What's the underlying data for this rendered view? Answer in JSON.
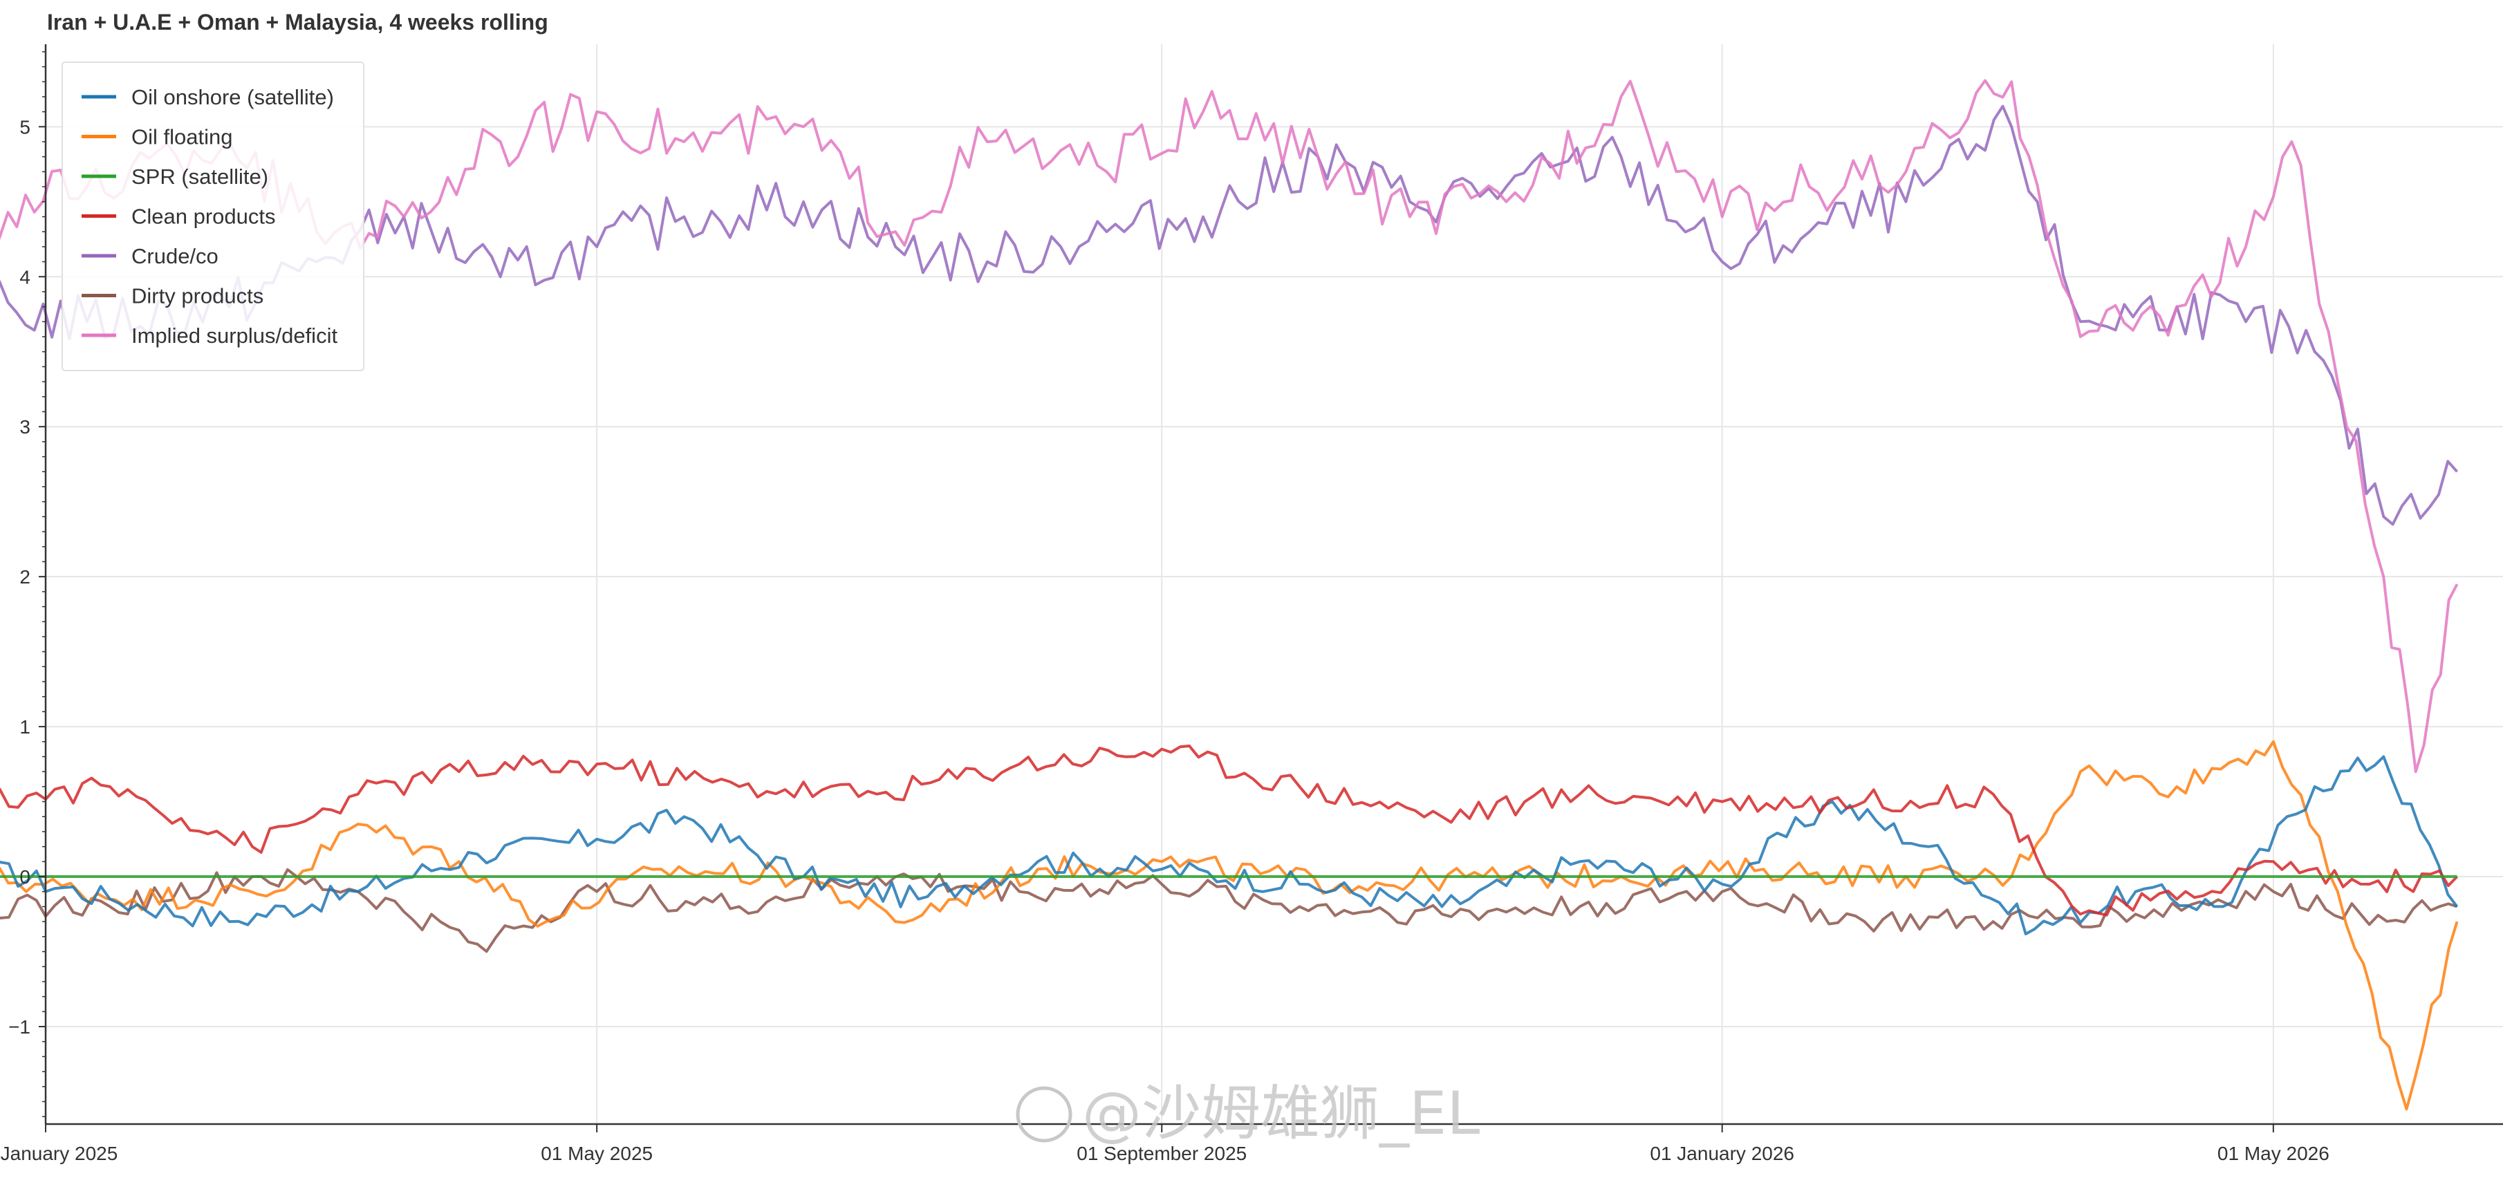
{
  "chart_data": {
    "type": "line",
    "title": "Iran + U.A.E + Oman + Malaysia, 4 weeks rolling",
    "xlabel": "",
    "ylabel": "",
    "x_range": [
      "2025-01-01",
      "2026-06-20"
    ],
    "ylim": [
      -1.65,
      5.55
    ],
    "y_ticks": [
      -1,
      0,
      1,
      2,
      3,
      4,
      5
    ],
    "y_tick_labels": [
      "−1",
      "0",
      "1",
      "2",
      "3",
      "4",
      "5"
    ],
    "x_ticks": [
      "2025-01-01",
      "2025-05-01",
      "2025-09-01",
      "2026-01-01",
      "2026-05-01"
    ],
    "x_tick_labels": [
      "01 January 2025",
      "01 May 2025",
      "01 September 2025",
      "01 January 2026",
      "01 May 2026"
    ],
    "grid": true,
    "legend_position": "top-left",
    "series": [
      {
        "name": "Oil onshore (satellite)",
        "color": "#1f77b4",
        "x": [
          "2024-12-20",
          "2025-01-15",
          "2025-02-10",
          "2025-03-10",
          "2025-04-05",
          "2025-05-01",
          "2025-05-20",
          "2025-06-15",
          "2025-07-10",
          "2025-08-05",
          "2025-09-01",
          "2025-10-01",
          "2025-11-01",
          "2025-12-01",
          "2026-01-01",
          "2026-01-25",
          "2026-02-15",
          "2026-03-10",
          "2026-04-01",
          "2026-04-20",
          "2026-05-10",
          "2026-05-25",
          "2026-06-10"
        ],
        "values": [
          0.05,
          -0.15,
          -0.3,
          -0.1,
          0.15,
          0.25,
          0.4,
          0.0,
          -0.15,
          0.1,
          0.05,
          -0.05,
          -0.2,
          0.1,
          -0.05,
          0.5,
          0.2,
          -0.35,
          -0.1,
          -0.2,
          0.6,
          0.8,
          -0.2
        ]
      },
      {
        "name": "Oil floating",
        "color": "#ff7f0e",
        "x": [
          "2024-12-20",
          "2025-01-20",
          "2025-02-20",
          "2025-03-10",
          "2025-04-01",
          "2025-04-20",
          "2025-05-15",
          "2025-06-15",
          "2025-07-05",
          "2025-08-05",
          "2025-09-01",
          "2025-10-10",
          "2025-11-10",
          "2025-12-10",
          "2026-01-10",
          "2026-02-10",
          "2026-03-05",
          "2026-03-20",
          "2026-04-10",
          "2026-05-01",
          "2026-05-15",
          "2026-05-30",
          "2026-06-10"
        ],
        "values": [
          0.0,
          -0.15,
          -0.1,
          0.35,
          0.1,
          -0.3,
          0.05,
          0.0,
          -0.3,
          0.05,
          0.1,
          -0.05,
          0.0,
          0.0,
          0.05,
          0.0,
          0.0,
          0.7,
          0.6,
          0.9,
          -0.1,
          -1.55,
          -0.3
        ]
      },
      {
        "name": "SPR (satellite)",
        "color": "#2ca02c",
        "x": [
          "2024-12-20",
          "2026-06-10"
        ],
        "values": [
          0.0,
          0.0
        ]
      },
      {
        "name": "Clean products",
        "color": "#d62728",
        "x": [
          "2024-12-20",
          "2025-01-15",
          "2025-02-15",
          "2025-03-10",
          "2025-04-01",
          "2025-05-01",
          "2025-06-01",
          "2025-07-01",
          "2025-08-01",
          "2025-09-01",
          "2025-10-01",
          "2025-11-01",
          "2025-12-01",
          "2026-01-01",
          "2026-02-01",
          "2026-03-01",
          "2026-03-20",
          "2026-04-10",
          "2026-05-01",
          "2026-05-20",
          "2026-06-10"
        ],
        "values": [
          0.5,
          0.6,
          0.2,
          0.55,
          0.7,
          0.75,
          0.6,
          0.55,
          0.75,
          0.85,
          0.6,
          0.4,
          0.55,
          0.5,
          0.5,
          0.55,
          -0.25,
          -0.15,
          0.1,
          -0.05,
          0.0
        ]
      },
      {
        "name": "Crude/co",
        "color": "#9467bd",
        "x": [
          "2024-12-20",
          "2025-01-10",
          "2025-02-10",
          "2025-03-01",
          "2025-03-20",
          "2025-04-10",
          "2025-05-01",
          "2025-05-20",
          "2025-06-15",
          "2025-07-05",
          "2025-07-25",
          "2025-08-20",
          "2025-09-10",
          "2025-10-05",
          "2025-10-25",
          "2025-11-15",
          "2025-12-10",
          "2026-01-01",
          "2026-01-20",
          "2026-02-10",
          "2026-03-05",
          "2026-03-20",
          "2026-04-10",
          "2026-04-25",
          "2026-05-10",
          "2026-05-25",
          "2026-06-10"
        ],
        "values": [
          3.8,
          3.7,
          3.8,
          4.1,
          4.4,
          4.0,
          4.2,
          4.4,
          4.5,
          4.2,
          4.1,
          4.3,
          4.4,
          4.8,
          4.5,
          4.6,
          4.8,
          4.1,
          4.3,
          4.5,
          5.0,
          3.7,
          3.8,
          3.7,
          3.5,
          2.4,
          2.7
        ]
      },
      {
        "name": "Dirty products",
        "color": "#8c564b",
        "x": [
          "2024-12-20",
          "2025-01-15",
          "2025-02-15",
          "2025-03-10",
          "2025-04-05",
          "2025-05-01",
          "2025-06-01",
          "2025-07-01",
          "2025-08-01",
          "2025-09-01",
          "2025-10-01",
          "2025-11-01",
          "2025-12-01",
          "2026-01-01",
          "2026-02-01",
          "2026-03-01",
          "2026-04-01",
          "2026-05-01",
          "2026-05-20",
          "2026-06-10"
        ],
        "values": [
          -0.2,
          -0.2,
          0.0,
          -0.1,
          -0.45,
          -0.1,
          -0.2,
          0.0,
          -0.1,
          -0.05,
          -0.2,
          -0.25,
          -0.2,
          -0.1,
          -0.3,
          -0.3,
          -0.25,
          -0.1,
          -0.25,
          -0.2
        ]
      },
      {
        "name": "Implied surplus/deficit",
        "color": "#e377c2",
        "x": [
          "2024-12-20",
          "2025-01-10",
          "2025-02-10",
          "2025-03-01",
          "2025-03-20",
          "2025-04-10",
          "2025-05-01",
          "2025-05-20",
          "2025-06-15",
          "2025-07-05",
          "2025-07-25",
          "2025-08-20",
          "2025-09-10",
          "2025-10-05",
          "2025-10-25",
          "2025-11-15",
          "2025-12-10",
          "2026-01-01",
          "2026-01-20",
          "2026-02-10",
          "2026-03-05",
          "2026-03-20",
          "2026-04-10",
          "2026-04-25",
          "2026-05-05",
          "2026-05-15",
          "2026-05-25",
          "2026-06-01",
          "2026-06-10"
        ],
        "values": [
          4.4,
          4.6,
          4.9,
          4.3,
          4.4,
          4.9,
          5.1,
          4.9,
          5.0,
          4.3,
          4.9,
          4.7,
          5.1,
          4.8,
          4.4,
          4.5,
          5.2,
          4.4,
          4.6,
          4.7,
          5.3,
          3.6,
          3.8,
          4.2,
          4.9,
          3.3,
          2.0,
          0.7,
          1.95
        ]
      }
    ]
  },
  "watermark": {
    "text": "@沙姆雄狮_EL"
  }
}
